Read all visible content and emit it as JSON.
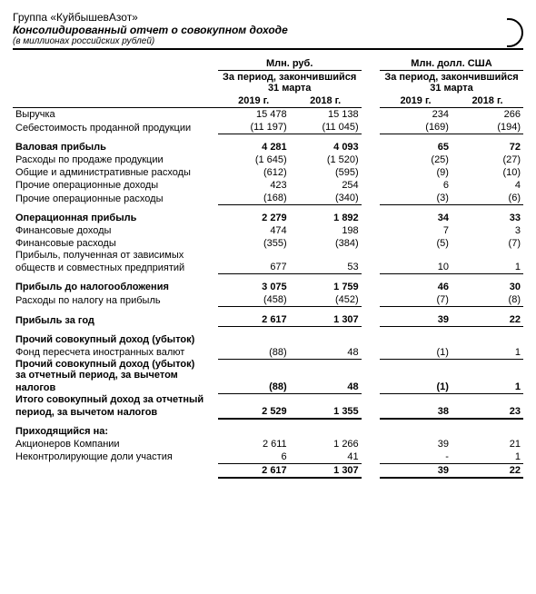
{
  "header": {
    "company": "Группа «КуйбышевАзот»",
    "title": "Консолидированный отчет о совокупном доходе",
    "subtitle": "(в миллионах российских рублей)"
  },
  "columns": {
    "group1_title": "Млн. руб.",
    "group2_title": "Млн. долл. США",
    "period1": "За период, закончившийся 31 марта",
    "period2": "За период, закончившийся 31 марта",
    "y2019": "2019 г.",
    "y2018": "2018 г."
  },
  "rows": [
    {
      "type": "data",
      "label": "Выручка",
      "v": [
        "15 478",
        "15 138",
        "234",
        "266"
      ],
      "labelBold": false
    },
    {
      "type": "data",
      "label": "Себестоимость проданной продукции",
      "v": [
        "(11 197)",
        "(11 045)",
        "(169)",
        "(194)"
      ],
      "labelBold": false,
      "underline": true
    },
    {
      "type": "total",
      "label": "Валовая прибыль",
      "v": [
        "4 281",
        "4 093",
        "65",
        "72"
      ],
      "labelBold": true
    },
    {
      "type": "data",
      "label": "Расходы по продаже продукции",
      "v": [
        "(1 645)",
        "(1 520)",
        "(25)",
        "(27)"
      ],
      "labelBold": false
    },
    {
      "type": "data",
      "label": "Общие и административные расходы",
      "v": [
        "(612)",
        "(595)",
        "(9)",
        "(10)"
      ],
      "labelBold": false
    },
    {
      "type": "data",
      "label": "Прочие операционные доходы",
      "v": [
        "423",
        "254",
        "6",
        "4"
      ],
      "labelBold": false
    },
    {
      "type": "data",
      "label": "Прочие операционные расходы",
      "v": [
        "(168)",
        "(340)",
        "(3)",
        "(6)"
      ],
      "labelBold": false,
      "underline": true
    },
    {
      "type": "total",
      "label": "Операционная прибыль",
      "v": [
        "2 279",
        "1 892",
        "34",
        "33"
      ],
      "labelBold": true
    },
    {
      "type": "data",
      "label": "Финансовые доходы",
      "v": [
        "474",
        "198",
        "7",
        "3"
      ],
      "labelBold": false
    },
    {
      "type": "data",
      "label": "Финансовые расходы",
      "v": [
        "(355)",
        "(384)",
        "(5)",
        "(7)"
      ],
      "labelBold": false
    },
    {
      "type": "data",
      "label": "Прибыль, полученная от зависимых",
      "v": [
        "",
        "",
        "",
        ""
      ],
      "labelBold": false,
      "noPad": true
    },
    {
      "type": "data",
      "label": "обществ и совместных предприятий",
      "v": [
        "677",
        "53",
        "10",
        "1"
      ],
      "labelBold": false,
      "underline": true
    },
    {
      "type": "total",
      "label": "Прибыль до налогообложения",
      "v": [
        "3 075",
        "1 759",
        "46",
        "30"
      ],
      "labelBold": true
    },
    {
      "type": "data",
      "label": "Расходы по налогу на прибыль",
      "v": [
        "(458)",
        "(452)",
        "(7)",
        "(8)"
      ],
      "labelBold": false,
      "underline": true
    },
    {
      "type": "total",
      "label": "Прибыль за год",
      "v": [
        "2 617",
        "1 307",
        "39",
        "22"
      ],
      "labelBold": true,
      "underline": true
    },
    {
      "type": "head",
      "label": "Прочий совокупный доход (убыток)",
      "labelBold": true
    },
    {
      "type": "data",
      "label": "Фонд пересчета иностранных валют",
      "v": [
        "(88)",
        "48",
        "(1)",
        "1"
      ],
      "labelBold": false,
      "underline": true
    },
    {
      "type": "head",
      "label": "Прочий совокупный доход (убыток)",
      "labelBold": true,
      "noPad": true
    },
    {
      "type": "head",
      "label": "за отчетный период, за вычетом",
      "labelBold": true,
      "noPad": true
    },
    {
      "type": "data",
      "label": "налогов",
      "v": [
        "(88)",
        "48",
        "(1)",
        "1"
      ],
      "labelBold": true,
      "underline": true
    },
    {
      "type": "head",
      "label": "Итого совокупный доход за отчетный",
      "labelBold": true,
      "noPad": true
    },
    {
      "type": "data",
      "label": "период, за вычетом налогов",
      "v": [
        "2 529",
        "1 355",
        "38",
        "23"
      ],
      "labelBold": true,
      "underline2": true
    },
    {
      "type": "head",
      "label": "Приходящийся на:",
      "labelBold": true
    },
    {
      "type": "data",
      "label": "Акционеров Компании",
      "v": [
        "2 611",
        "1 266",
        "39",
        "21"
      ],
      "labelBold": false
    },
    {
      "type": "data",
      "label": "Неконтролирующие доли участия",
      "v": [
        "6",
        "41",
        "-",
        "1"
      ],
      "labelBold": false,
      "underline": true
    },
    {
      "type": "data",
      "label": "",
      "v": [
        "2 617",
        "1 307",
        "39",
        "22"
      ],
      "labelBold": true,
      "underline2": true
    }
  ]
}
